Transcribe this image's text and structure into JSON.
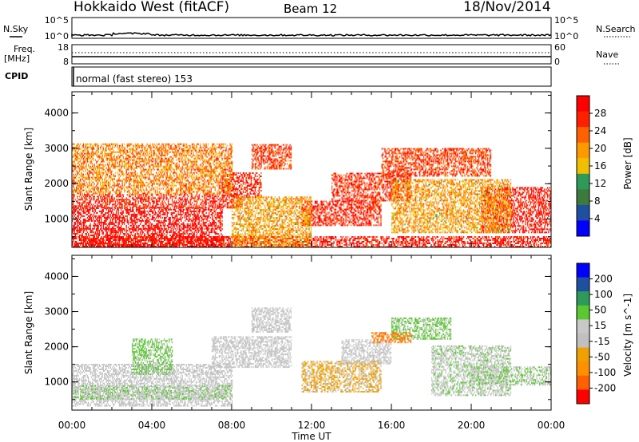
{
  "header": {
    "station": "Hokkaido West (fitACF)",
    "beam": "Beam 12",
    "date": "18/Nov/2014"
  },
  "strip": {
    "nsky_label": "N.Sky",
    "nsky_ticks": [
      "10^5",
      "10^0"
    ],
    "nsearch_label": "N.Search",
    "nsearch_ticks": [
      "10^5",
      "10^0"
    ],
    "freq_label_1": "Freq.",
    "freq_label_2": "[MHz]",
    "freq_ticks": [
      "18",
      "8"
    ],
    "nave_label": "Nave",
    "nave_ticks": [
      "60",
      "0"
    ],
    "cpid_label": "CPID",
    "cpid_value": "normal (fast stereo) 153"
  },
  "colors": {
    "power_scale": [
      "#0000ff",
      "#1f4fa0",
      "#3d7a3d",
      "#2d9a5a",
      "#f0c000",
      "#ff9900",
      "#ff6000",
      "#ff2000",
      "#ff0000"
    ],
    "velocity_scale": [
      "#ff0000",
      "#ff6000",
      "#ff9000",
      "#f0a000",
      "#c0c0c0",
      "#c8c8c8",
      "#5ac830",
      "#2d9a5a",
      "#1f4fa0",
      "#0000ff"
    ]
  },
  "chart_data": [
    {
      "type": "heatmap",
      "panel": "power",
      "ylabel": "Slant Range [km]",
      "ylim": [
        200,
        4600
      ],
      "yticks": [
        "4000",
        "3000",
        "2000",
        "1000"
      ],
      "xlabel": "Time UT",
      "xticks": [
        "00:00",
        "04:00",
        "08:00",
        "12:00",
        "16:00",
        "20:00",
        "00:00"
      ],
      "xlim_hours": [
        0,
        24
      ],
      "colorbar_label": "Power [dB]",
      "colorbar_ticks": [
        "28",
        "24",
        "20",
        "16",
        "12",
        "8",
        "4"
      ],
      "colorbar_range": [
        0,
        30
      ],
      "regions": [
        {
          "t0": 0,
          "t1": 7.5,
          "r0": 200,
          "r1": 700,
          "value": 28
        },
        {
          "t0": 0,
          "t1": 7.5,
          "r0": 700,
          "r1": 1300,
          "value": 28
        },
        {
          "t0": 0,
          "t1": 8.5,
          "r0": 1300,
          "r1": 1700,
          "value": 26
        },
        {
          "t0": 7.5,
          "t1": 9.5,
          "r0": 1600,
          "r1": 2300,
          "value": 26
        },
        {
          "t0": 9,
          "t1": 11,
          "r0": 2400,
          "r1": 3100,
          "value": 24
        },
        {
          "t0": 11.5,
          "t1": 15.5,
          "r0": 800,
          "r1": 1500,
          "value": 26
        },
        {
          "t0": 13,
          "t1": 17,
          "r0": 1500,
          "r1": 2300,
          "value": 25
        },
        {
          "t0": 15.5,
          "t1": 21,
          "r0": 2200,
          "r1": 3000,
          "value": 24
        },
        {
          "t0": 20.5,
          "t1": 24,
          "r0": 600,
          "r1": 1900,
          "value": 27
        },
        {
          "t0": 0,
          "t1": 24,
          "r0": 200,
          "r1": 500,
          "value": 27
        },
        {
          "t0": 0,
          "t1": 8,
          "r0": 1700,
          "r1": 3100,
          "value": 20
        },
        {
          "t0": 8,
          "t1": 12,
          "r0": 200,
          "r1": 1600,
          "value": 18
        },
        {
          "t0": 16,
          "t1": 22,
          "r0": 600,
          "r1": 2100,
          "value": 18
        }
      ]
    },
    {
      "type": "heatmap",
      "panel": "velocity",
      "ylabel": "Slant Range [km]",
      "ylim": [
        200,
        4600
      ],
      "yticks": [
        "4000",
        "3000",
        "2000",
        "1000"
      ],
      "xlabel": "Time UT",
      "xticks": [
        "00:00",
        "04:00",
        "08:00",
        "12:00",
        "16:00",
        "20:00",
        "00:00"
      ],
      "xlim_hours": [
        0,
        24
      ],
      "colorbar_label": "Velocity [m s^-1]",
      "colorbar_ticks": [
        "200",
        "100",
        "50",
        "15",
        "-15",
        "-50",
        "-100",
        "-200"
      ],
      "colorbar_range": [
        -250,
        250
      ],
      "regions": [
        {
          "t0": 0,
          "t1": 8,
          "r0": 300,
          "r1": 1500,
          "value": 0
        },
        {
          "t0": 0,
          "t1": 8,
          "r0": 500,
          "r1": 900,
          "value": 40
        },
        {
          "t0": 3,
          "t1": 5,
          "r0": 1200,
          "r1": 2200,
          "value": 60
        },
        {
          "t0": 7,
          "t1": 11,
          "r0": 1400,
          "r1": 2300,
          "value": 0
        },
        {
          "t0": 9,
          "t1": 11,
          "r0": 2400,
          "r1": 3100,
          "value": 0
        },
        {
          "t0": 11.5,
          "t1": 15.5,
          "r0": 700,
          "r1": 1600,
          "value": -60
        },
        {
          "t0": 13.5,
          "t1": 16,
          "r0": 1500,
          "r1": 2200,
          "value": 0
        },
        {
          "t0": 16,
          "t1": 19,
          "r0": 2200,
          "r1": 2800,
          "value": 60
        },
        {
          "t0": 15,
          "t1": 17,
          "r0": 2100,
          "r1": 2400,
          "value": -150
        },
        {
          "t0": 18,
          "t1": 22,
          "r0": 600,
          "r1": 2000,
          "value": 30
        },
        {
          "t0": 20,
          "t1": 24,
          "r0": 900,
          "r1": 1400,
          "value": 40
        }
      ]
    }
  ]
}
